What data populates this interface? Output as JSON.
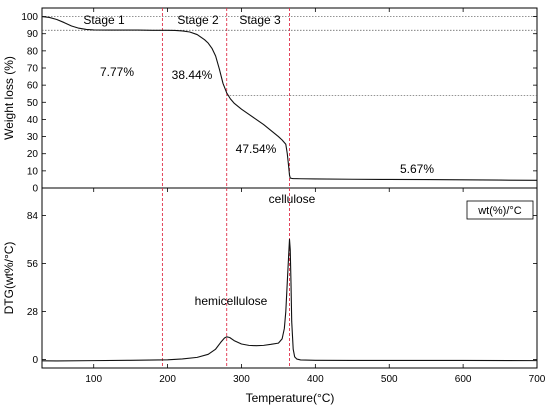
{
  "chart_data": [
    {
      "type": "line",
      "ylabel": "Weight loss (%)",
      "xlim": [
        30,
        700
      ],
      "ylim": [
        0,
        105
      ],
      "yticks": [
        0,
        10,
        20,
        30,
        40,
        50,
        60,
        70,
        80,
        90,
        100
      ],
      "series": [
        {
          "x": [
            30,
            40,
            50,
            60,
            70,
            80,
            90,
            100,
            120,
            140,
            160,
            180,
            200,
            210,
            220,
            230,
            240,
            250,
            255,
            260,
            265,
            270,
            275,
            280,
            285,
            290,
            300,
            310,
            320,
            330,
            340,
            350,
            355,
            360,
            362,
            364,
            365,
            366,
            368,
            370,
            380,
            400,
            450,
            500,
            550,
            600,
            650,
            700
          ],
          "values": [
            100,
            99.5,
            98.3,
            96.5,
            94.5,
            93.2,
            92.5,
            92.2,
            92.1,
            92.1,
            92.1,
            92.0,
            92.0,
            91.9,
            91.6,
            91.0,
            89.5,
            86.5,
            84.5,
            81.5,
            77.0,
            69.5,
            61.0,
            55.5,
            52.0,
            49.5,
            46.0,
            43.0,
            40.0,
            37.0,
            33.5,
            30.0,
            28.0,
            25.5,
            20.0,
            12.0,
            7.5,
            5.8,
            5.6,
            5.5,
            5.4,
            5.3,
            5.1,
            5.0,
            4.9,
            4.8,
            4.6,
            4.5
          ]
        }
      ],
      "reference_lines_y": [
        100,
        92,
        54
      ],
      "reference_lines_x": [
        193,
        280,
        365
      ],
      "stage_labels": [
        "Stage 1",
        "Stage 2",
        "Stage 3"
      ],
      "annotations": [
        "7.77%",
        "38.44%",
        "47.54%",
        "5.67%"
      ]
    },
    {
      "type": "line",
      "xlabel": "Temperature(°C)",
      "ylabel": "DTG(wt%/°C)",
      "xlim": [
        30,
        700
      ],
      "ylim": [
        -5,
        100
      ],
      "yticks": [
        0,
        28,
        56,
        84
      ],
      "xticks": [
        100,
        200,
        300,
        400,
        500,
        600,
        700
      ],
      "series": [
        {
          "x": [
            30,
            50,
            100,
            150,
            200,
            220,
            240,
            255,
            265,
            272,
            277,
            280,
            284,
            290,
            300,
            310,
            320,
            330,
            340,
            350,
            355,
            358,
            360,
            362,
            364,
            365,
            366,
            367,
            368,
            370,
            372,
            375,
            380,
            400,
            450,
            500,
            600,
            700
          ],
          "values": [
            -0.8,
            -0.9,
            -0.7,
            -0.5,
            -0.2,
            0.3,
            1.2,
            3.0,
            6.0,
            10.0,
            12.5,
            13.2,
            12.8,
            11.0,
            9.0,
            8.2,
            8.0,
            8.2,
            8.8,
            9.5,
            12.0,
            18.0,
            28.0,
            45.0,
            62.0,
            70.0,
            64.0,
            45.0,
            22.0,
            6.0,
            1.5,
            0.2,
            -0.3,
            -0.5,
            -0.6,
            -0.6,
            -0.6,
            -0.7
          ]
        }
      ],
      "reference_lines_x": [
        193,
        280,
        365
      ],
      "legend": "wt(%)/°C",
      "annotations": [
        "cellulose",
        "hemicellulose"
      ]
    }
  ]
}
